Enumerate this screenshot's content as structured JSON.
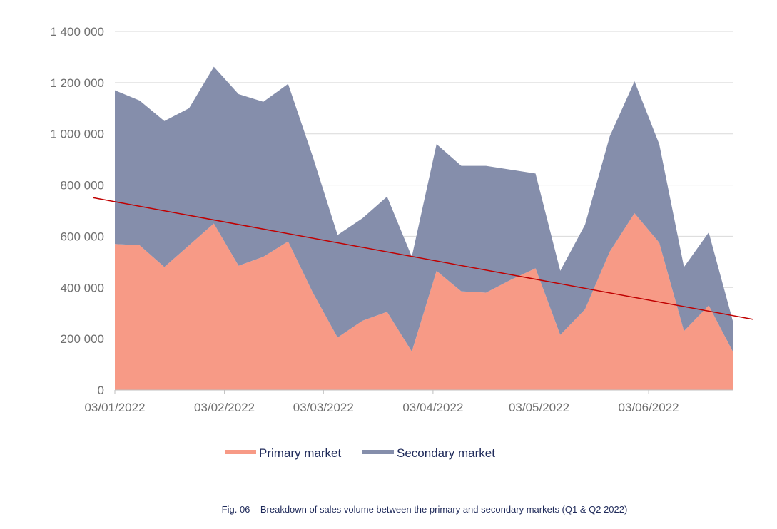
{
  "chart_data": {
    "type": "area",
    "stacked": true,
    "x": [
      "03/01/2022",
      "10/01/2022",
      "17/01/2022",
      "24/01/2022",
      "31/01/2022",
      "07/02/2022",
      "14/02/2022",
      "21/02/2022",
      "28/02/2022",
      "07/03/2022",
      "14/03/2022",
      "21/03/2022",
      "28/03/2022",
      "04/04/2022",
      "11/04/2022",
      "18/04/2022",
      "25/04/2022",
      "02/05/2022",
      "09/05/2022",
      "16/05/2022",
      "23/05/2022",
      "30/05/2022",
      "06/06/2022",
      "13/06/2022",
      "20/06/2022",
      "27/06/2022"
    ],
    "series": [
      {
        "name": "Primary market",
        "color": "#f79a86",
        "values": [
          570000,
          565000,
          480000,
          565000,
          650000,
          485000,
          520000,
          580000,
          380000,
          205000,
          270000,
          305000,
          150000,
          465000,
          385000,
          380000,
          430000,
          475000,
          215000,
          315000,
          540000,
          690000,
          575000,
          230000,
          330000,
          145000
        ]
      },
      {
        "name": "Secondary market",
        "color": "#858eab",
        "values": [
          600000,
          565000,
          570000,
          535000,
          612000,
          670000,
          605000,
          615000,
          530000,
          400000,
          400000,
          450000,
          370000,
          495000,
          490000,
          495000,
          430000,
          370000,
          250000,
          330000,
          450000,
          515000,
          385000,
          250000,
          285000,
          115000
        ]
      }
    ],
    "trendline": {
      "color": "#c00000",
      "start": 735000,
      "end": 290000
    },
    "x_ticks": [
      "03/01/2022",
      "03/02/2022",
      "03/03/2022",
      "03/04/2022",
      "03/05/2022",
      "03/06/2022"
    ],
    "y_ticks": [
      "0",
      "200 000",
      "400 000",
      "600 000",
      "800 000",
      "1 000 000",
      "1 200 000",
      "1 400 000"
    ],
    "ylim": [
      0,
      1400000
    ],
    "grid": true,
    "legend_position": "bottom-center",
    "caption": "Fig. 06 – Breakdown of sales volume between the primary and secondary markets (Q1 & Q2 2022)"
  }
}
